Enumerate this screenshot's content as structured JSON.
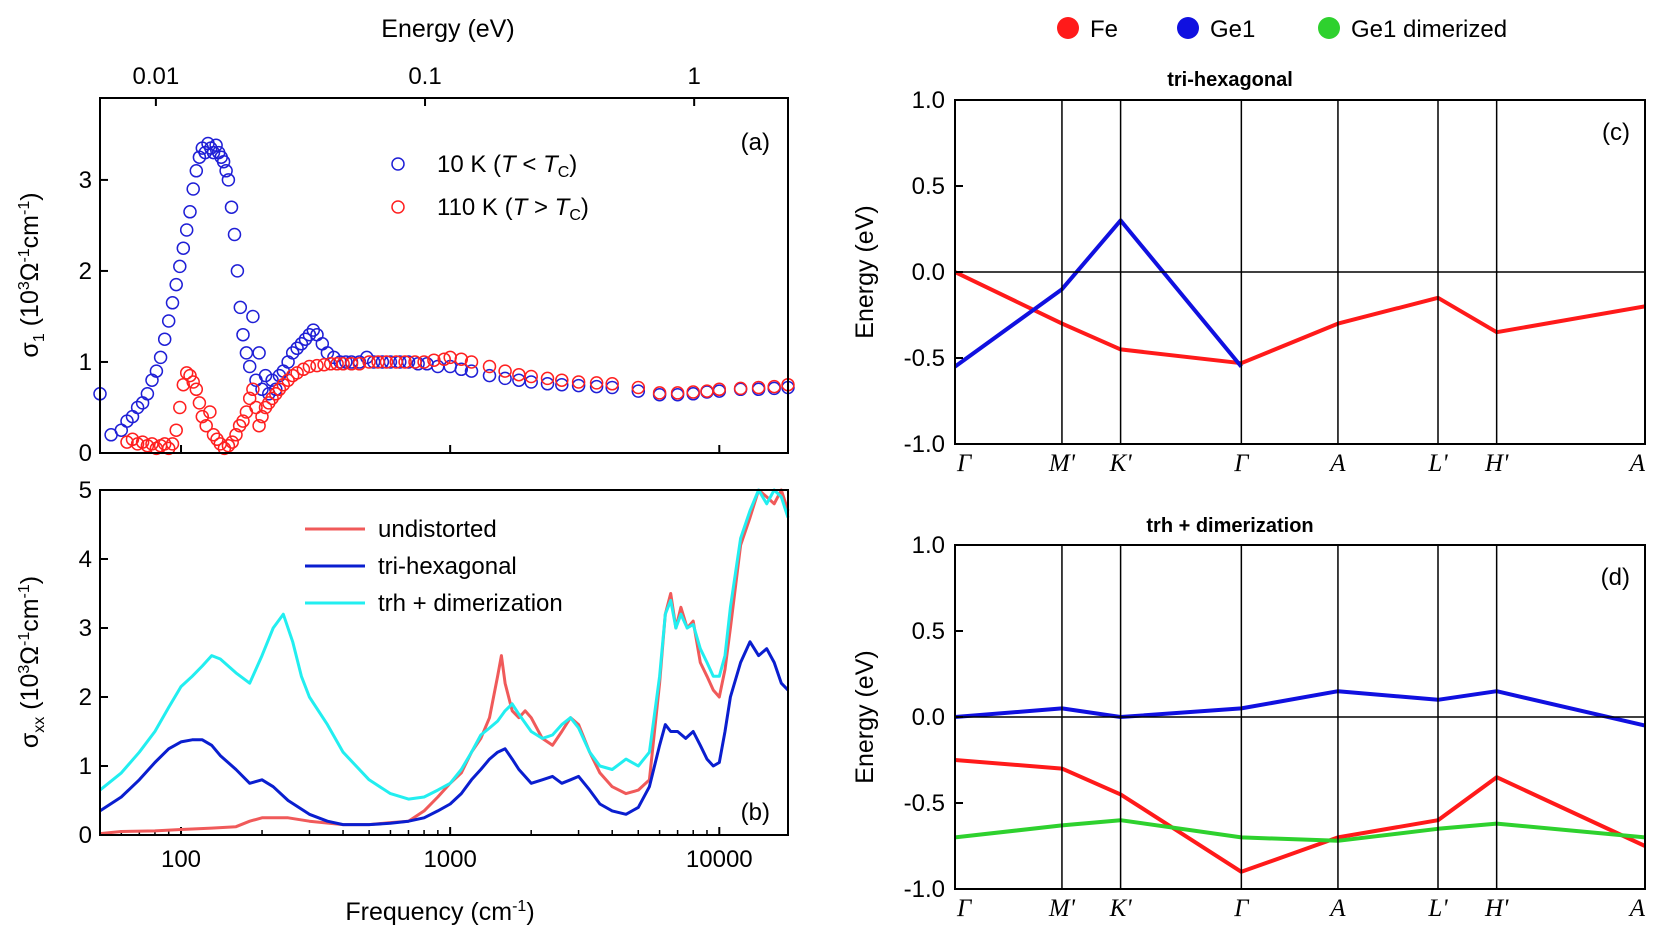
{
  "colors": {
    "blue_data": "#1f1fd6",
    "red_data": "#ff2020",
    "undistorted": "#f05a5a",
    "tri_hexagonal": "#0a1ecf",
    "trh_dimerization": "#22eef0",
    "fe": "#ff1a1a",
    "ge1": "#1010e0",
    "ge1_dimerized": "#2ed12e"
  },
  "band_legend": {
    "fe": "Fe",
    "ge1": "Ge1",
    "ge1_dimerized": "Ge1 dimerized"
  },
  "chart_data": [
    {
      "id": "a",
      "type": "scatter",
      "panel_label": "(a)",
      "ylabel_parts": [
        "σ",
        "1",
        " (10",
        "3",
        "Ω",
        "-1",
        "cm",
        "-1",
        ")"
      ],
      "top_axis_label": "Energy (eV)",
      "top_ticks": [
        "0.01",
        "0.1",
        "1"
      ],
      "top_tick_values_ev": [
        0.01,
        0.1,
        1
      ],
      "x_log": true,
      "xlim": [
        50,
        18000
      ],
      "ylim": [
        0,
        3.9
      ],
      "yticks": [
        "0",
        "1",
        "2",
        "3"
      ],
      "series": [
        {
          "name_parts": [
            "10 K (",
            "T",
            " < ",
            "T",
            "C",
            ")"
          ],
          "x": [
            50,
            55,
            60,
            63,
            66,
            69,
            72,
            75,
            78,
            81,
            84,
            87,
            90,
            93,
            96,
            99,
            102,
            105,
            108,
            111,
            114,
            117,
            120,
            123,
            126,
            129,
            132,
            135,
            138,
            141,
            144,
            147,
            150,
            154,
            158,
            162,
            166,
            170,
            175,
            180,
            185,
            190,
            195,
            200,
            206,
            212,
            218,
            225,
            232,
            240,
            250,
            260,
            270,
            280,
            290,
            300,
            310,
            320,
            335,
            350,
            370,
            390,
            410,
            430,
            460,
            490,
            520,
            560,
            600,
            650,
            700,
            760,
            820,
            900,
            1000,
            1100,
            1200,
            1400,
            1600,
            1800,
            2000,
            2300,
            2600,
            3000,
            3500,
            4000,
            5000,
            6000,
            7000,
            8000,
            9000,
            10000,
            12000,
            14000,
            16000,
            18000
          ],
          "y": [
            0.65,
            0.2,
            0.25,
            0.35,
            0.4,
            0.5,
            0.55,
            0.65,
            0.8,
            0.9,
            1.05,
            1.25,
            1.45,
            1.65,
            1.85,
            2.05,
            2.25,
            2.45,
            2.65,
            2.9,
            3.1,
            3.25,
            3.35,
            3.3,
            3.4,
            3.35,
            3.3,
            3.38,
            3.3,
            3.25,
            3.2,
            3.1,
            3.0,
            2.7,
            2.4,
            2.0,
            1.6,
            1.3,
            1.1,
            0.95,
            1.5,
            0.8,
            1.1,
            0.7,
            0.85,
            0.65,
            0.8,
            0.7,
            0.85,
            0.9,
            1.0,
            1.1,
            1.15,
            1.2,
            1.25,
            1.3,
            1.35,
            1.3,
            1.2,
            1.1,
            1.05,
            1.0,
            1.0,
            1.0,
            1.0,
            1.05,
            1.0,
            1.0,
            1.0,
            1.0,
            1.0,
            0.98,
            0.98,
            0.95,
            0.95,
            0.92,
            0.9,
            0.85,
            0.82,
            0.8,
            0.78,
            0.76,
            0.75,
            0.74,
            0.73,
            0.72,
            0.68,
            0.64,
            0.64,
            0.65,
            0.67,
            0.68,
            0.7,
            0.7,
            0.71,
            0.72
          ]
        },
        {
          "name_parts": [
            "110 K (",
            "T",
            " > ",
            "T",
            "C",
            ")"
          ],
          "x": [
            63,
            66,
            69,
            72,
            75,
            78,
            81,
            84,
            87,
            90,
            93,
            96,
            99,
            102,
            105,
            108,
            111,
            114,
            117,
            120,
            124,
            128,
            132,
            136,
            140,
            145,
            150,
            155,
            160,
            165,
            170,
            175,
            180,
            185,
            190,
            195,
            200,
            206,
            212,
            218,
            225,
            232,
            240,
            250,
            260,
            270,
            285,
            300,
            320,
            340,
            360,
            380,
            400,
            430,
            460,
            500,
            540,
            580,
            630,
            680,
            740,
            800,
            870,
            950,
            1000,
            1100,
            1200,
            1400,
            1600,
            1800,
            2000,
            2300,
            2600,
            3000,
            3500,
            4000,
            5000,
            6000,
            7000,
            8000,
            9000,
            10000,
            12000,
            14000,
            16000,
            18000
          ],
          "y": [
            0.12,
            0.15,
            0.1,
            0.12,
            0.08,
            0.1,
            0.05,
            0.08,
            0.1,
            0.05,
            0.1,
            0.25,
            0.5,
            0.75,
            0.88,
            0.85,
            0.78,
            0.7,
            0.55,
            0.4,
            0.3,
            0.45,
            0.2,
            0.15,
            0.1,
            0.05,
            0.08,
            0.12,
            0.2,
            0.3,
            0.35,
            0.45,
            0.6,
            0.7,
            0.5,
            0.3,
            0.4,
            0.5,
            0.55,
            0.6,
            0.65,
            0.7,
            0.75,
            0.8,
            0.85,
            0.88,
            0.92,
            0.95,
            0.96,
            0.97,
            0.98,
            0.98,
            0.98,
            0.98,
            0.98,
            1.0,
            1.0,
            1.0,
            1.0,
            1.0,
            1.0,
            1.0,
            1.02,
            1.03,
            1.05,
            1.03,
            1.0,
            0.95,
            0.9,
            0.86,
            0.84,
            0.82,
            0.8,
            0.78,
            0.77,
            0.76,
            0.72,
            0.66,
            0.66,
            0.67,
            0.68,
            0.7,
            0.71,
            0.72,
            0.73,
            0.75
          ]
        }
      ]
    },
    {
      "id": "b",
      "type": "line",
      "panel_label": "(b)",
      "ylabel_parts": [
        "σ",
        "xx",
        " (10",
        "3",
        "Ω",
        "-1",
        "cm",
        "-1",
        ")"
      ],
      "xlabel_parts": [
        "Frequency (cm",
        "-1",
        ")"
      ],
      "xticks": [
        "100",
        "1000",
        "10000"
      ],
      "xtick_values": [
        100,
        1000,
        10000
      ],
      "x_log": true,
      "xlim": [
        50,
        18000
      ],
      "ylim": [
        0,
        5
      ],
      "yticks": [
        "0",
        "1",
        "2",
        "3",
        "4",
        "5"
      ],
      "series": [
        {
          "name": "undistorted",
          "x": [
            50,
            60,
            80,
            100,
            130,
            160,
            180,
            200,
            250,
            300,
            400,
            500,
            600,
            700,
            800,
            900,
            1000,
            1100,
            1200,
            1300,
            1400,
            1500,
            1550,
            1600,
            1700,
            1800,
            1900,
            2000,
            2200,
            2400,
            2600,
            2800,
            3000,
            3300,
            3600,
            4000,
            4500,
            5000,
            5500,
            6000,
            6300,
            6600,
            6900,
            7200,
            7600,
            8000,
            8500,
            9000,
            9500,
            10000,
            10500,
            11000,
            12000,
            13000,
            14000,
            15000,
            16000,
            17000,
            18000
          ],
          "y": [
            0.02,
            0.05,
            0.06,
            0.08,
            0.1,
            0.12,
            0.2,
            0.25,
            0.25,
            0.2,
            0.15,
            0.15,
            0.18,
            0.2,
            0.35,
            0.55,
            0.75,
            0.9,
            1.2,
            1.4,
            1.7,
            2.3,
            2.6,
            2.2,
            1.8,
            1.7,
            1.8,
            1.7,
            1.4,
            1.3,
            1.5,
            1.7,
            1.6,
            1.2,
            0.9,
            0.7,
            0.6,
            0.65,
            0.8,
            2.2,
            3.2,
            3.5,
            3.0,
            3.3,
            3.0,
            3.1,
            2.5,
            2.3,
            2.1,
            2.0,
            2.4,
            3.0,
            4.2,
            4.6,
            5.0,
            4.9,
            4.8,
            5.0,
            4.7
          ]
        },
        {
          "name": "tri-hexagonal",
          "x": [
            50,
            60,
            70,
            80,
            90,
            100,
            110,
            120,
            130,
            140,
            160,
            180,
            200,
            220,
            250,
            300,
            350,
            400,
            500,
            600,
            700,
            800,
            900,
            1000,
            1100,
            1200,
            1300,
            1400,
            1500,
            1600,
            1700,
            1800,
            2000,
            2200,
            2400,
            2600,
            2800,
            3000,
            3300,
            3600,
            4000,
            4500,
            5000,
            5500,
            6000,
            6300,
            6600,
            7000,
            7500,
            8000,
            8500,
            9000,
            9500,
            10000,
            10500,
            11000,
            12000,
            13000,
            14000,
            15000,
            16000,
            17000,
            18000
          ],
          "y": [
            0.35,
            0.55,
            0.8,
            1.05,
            1.25,
            1.35,
            1.38,
            1.38,
            1.3,
            1.15,
            0.95,
            0.75,
            0.8,
            0.7,
            0.5,
            0.3,
            0.2,
            0.15,
            0.15,
            0.17,
            0.2,
            0.25,
            0.35,
            0.45,
            0.6,
            0.8,
            0.95,
            1.1,
            1.2,
            1.25,
            1.1,
            0.95,
            0.75,
            0.8,
            0.85,
            0.75,
            0.8,
            0.85,
            0.65,
            0.45,
            0.35,
            0.3,
            0.4,
            0.7,
            1.3,
            1.6,
            1.5,
            1.5,
            1.4,
            1.5,
            1.3,
            1.1,
            1.0,
            1.05,
            1.5,
            2.0,
            2.5,
            2.8,
            2.6,
            2.7,
            2.5,
            2.2,
            2.1
          ]
        },
        {
          "name": "trh + dimerization",
          "x": [
            50,
            60,
            70,
            80,
            90,
            100,
            110,
            120,
            130,
            140,
            160,
            180,
            200,
            220,
            240,
            260,
            280,
            300,
            350,
            400,
            500,
            600,
            700,
            800,
            900,
            1000,
            1100,
            1200,
            1300,
            1400,
            1500,
            1600,
            1700,
            1800,
            2000,
            2200,
            2400,
            2600,
            2800,
            3000,
            3300,
            3600,
            4000,
            4500,
            5000,
            5500,
            6000,
            6300,
            6600,
            6900,
            7200,
            7600,
            8000,
            8500,
            9000,
            9500,
            10000,
            10500,
            11000,
            12000,
            13000,
            14000,
            15000,
            16000,
            17000,
            18000
          ],
          "y": [
            0.65,
            0.9,
            1.2,
            1.5,
            1.85,
            2.15,
            2.3,
            2.45,
            2.6,
            2.55,
            2.35,
            2.2,
            2.6,
            3.0,
            3.2,
            2.8,
            2.3,
            2.0,
            1.6,
            1.2,
            0.8,
            0.6,
            0.52,
            0.55,
            0.65,
            0.75,
            0.95,
            1.2,
            1.45,
            1.55,
            1.65,
            1.8,
            1.9,
            1.75,
            1.5,
            1.4,
            1.45,
            1.6,
            1.7,
            1.55,
            1.2,
            1.0,
            0.95,
            1.1,
            1.0,
            1.2,
            2.3,
            3.2,
            3.4,
            3.0,
            3.2,
            3.0,
            3.05,
            2.7,
            2.5,
            2.3,
            2.3,
            2.6,
            3.3,
            4.3,
            4.7,
            5.0,
            4.8,
            5.0,
            4.9,
            4.6
          ]
        }
      ]
    },
    {
      "id": "c",
      "type": "line",
      "title": "tri-hexagonal",
      "panel_label": "(c)",
      "ylabel": "Energy (eV)",
      "ylim": [
        -1.0,
        1.0
      ],
      "yticks": [
        "-1.0",
        "-0.5",
        "0.0",
        "0.5",
        "1.0"
      ],
      "kpoints": [
        "Γ",
        "M'",
        "K'",
        "Γ",
        "A",
        "L'",
        "H'",
        "A"
      ],
      "kpoint_positions": [
        0,
        0.155,
        0.24,
        0.415,
        0.555,
        0.7,
        0.785,
        1.0
      ],
      "series": [
        {
          "name": "Fe",
          "x": [
            0,
            0.155,
            0.24,
            0.415,
            0.555,
            0.7,
            0.785,
            1.0
          ],
          "y": [
            0.0,
            -0.3,
            -0.45,
            -0.53,
            -0.3,
            -0.15,
            -0.35,
            -0.2
          ]
        },
        {
          "name": "Ge1",
          "x": [
            0,
            0.155,
            0.24,
            0.415
          ],
          "y": [
            -0.55,
            -0.1,
            0.3,
            -0.55
          ]
        }
      ]
    },
    {
      "id": "d",
      "type": "line",
      "title": "trh + dimerization",
      "panel_label": "(d)",
      "ylabel": "Energy (eV)",
      "ylim": [
        -1.0,
        1.0
      ],
      "yticks": [
        "-1.0",
        "-0.5",
        "0.0",
        "0.5",
        "1.0"
      ],
      "kpoints": [
        "Γ",
        "M'",
        "K'",
        "Γ",
        "A",
        "L'",
        "H'",
        "A"
      ],
      "kpoint_positions": [
        0,
        0.155,
        0.24,
        0.415,
        0.555,
        0.7,
        0.785,
        1.0
      ],
      "series": [
        {
          "name": "Fe",
          "x": [
            0,
            0.155,
            0.24,
            0.415,
            0.555,
            0.7,
            0.785,
            1.0
          ],
          "y": [
            -0.25,
            -0.3,
            -0.45,
            -0.9,
            -0.7,
            -0.6,
            -0.35,
            -0.75
          ]
        },
        {
          "name": "Ge1",
          "x": [
            0,
            0.155,
            0.24,
            0.415,
            0.555,
            0.7,
            0.785,
            1.0
          ],
          "y": [
            0.0,
            0.05,
            0.0,
            0.05,
            0.15,
            0.1,
            0.15,
            -0.05
          ]
        },
        {
          "name": "Ge1 dimerized",
          "x": [
            0,
            0.155,
            0.24,
            0.415,
            0.555,
            0.7,
            0.785,
            1.0
          ],
          "y": [
            -0.7,
            -0.63,
            -0.6,
            -0.7,
            -0.72,
            -0.65,
            -0.62,
            -0.7
          ]
        }
      ]
    }
  ]
}
